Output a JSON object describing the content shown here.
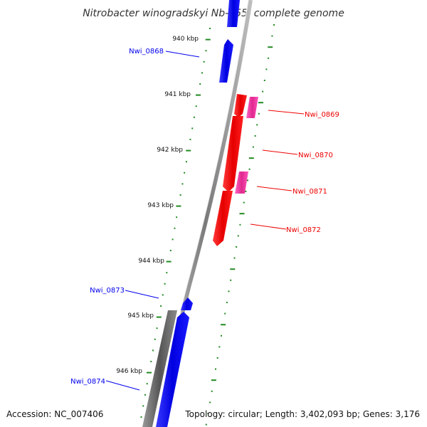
{
  "title": "Nitrobacter winogradskyi Nb-255, complete genome",
  "footer": {
    "accession": "Accession: NC_007406",
    "summary": "Topology: circular; Length: 3,402,093 bp; Genes: 3,176"
  },
  "kbp_labels": [
    "940 kbp",
    "941 kbp",
    "942 kbp",
    "943 kbp",
    "944 kbp",
    "945 kbp",
    "946 kbp"
  ],
  "genes": [
    {
      "id": "Nwi_0868",
      "color": "#0000ee"
    },
    {
      "id": "Nwi_0869",
      "color": "#ee0000"
    },
    {
      "id": "Nwi_0870",
      "color": "#ee0000"
    },
    {
      "id": "Nwi_0871",
      "color": "#ee0000"
    },
    {
      "id": "Nwi_0872",
      "color": "#ee0000"
    },
    {
      "id": "Nwi_0873",
      "color": "#0000ee"
    },
    {
      "id": "Nwi_0874",
      "color": "#0000ee"
    }
  ],
  "colors": {
    "forward_gene": "#ee0000",
    "forward_gene_alt": "#ee3399",
    "reverse_gene": "#0000ee",
    "backbone": "#888888",
    "tick": "#228b22"
  }
}
